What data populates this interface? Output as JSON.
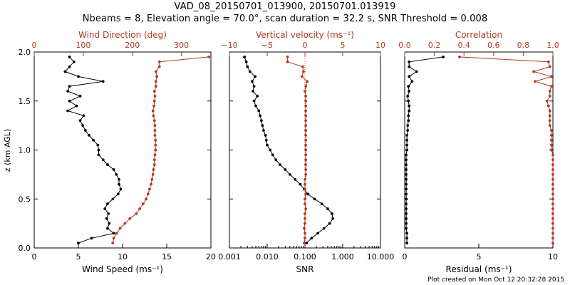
{
  "header": {
    "title_line1": "VAD_08_20150701_013900, 20150701.013919",
    "title_line2": "Nbeams = 8, Elevation angle = 70.0°, scan duration = 32.2 s, SNR Threshold = 0.008"
  },
  "footer": {
    "text": "Plot created on Mon Oct 12 20:32:28 2015"
  },
  "colors": {
    "primary": "#000000",
    "secondary": "#b03a1e",
    "zero_line": "#ff3030"
  },
  "chart_data": [
    {
      "type": "line",
      "ylabel": "z (km AGL)",
      "ylim": [
        0,
        2.0
      ],
      "yticks": [
        0.0,
        0.5,
        1.0,
        1.5,
        2.0
      ],
      "ytick_labels": [
        "0.0",
        "0.5",
        "1.0",
        "1.5",
        "2.0"
      ],
      "xlabel": "Wind Speed (ms⁻¹)",
      "xlim": [
        0,
        20
      ],
      "xticks": [
        0,
        5,
        10,
        15,
        20
      ],
      "xtick_labels": [
        "0",
        "5",
        "10",
        "15",
        "20"
      ],
      "x2label": "Wind Direction (deg)",
      "x2lim": [
        0,
        360
      ],
      "x2ticks": [
        0,
        100,
        200,
        300
      ],
      "x2tick_labels": [
        "0",
        "100",
        "200",
        "300"
      ],
      "series": [
        {
          "axis": "bottom",
          "z": [
            0.05,
            0.1,
            0.15,
            0.2,
            0.25,
            0.3,
            0.35,
            0.4,
            0.45,
            0.5,
            0.55,
            0.6,
            0.65,
            0.7,
            0.75,
            0.8,
            0.85,
            0.9,
            0.95,
            1.0,
            1.05,
            1.1,
            1.15,
            1.2,
            1.25,
            1.3,
            1.35,
            1.4,
            1.45,
            1.5,
            1.55,
            1.6,
            1.65,
            1.7,
            1.75,
            1.8,
            1.85,
            1.9,
            1.95
          ],
          "values": [
            5.0,
            6.5,
            9.0,
            8.3,
            8.5,
            8.2,
            8.4,
            8.0,
            8.3,
            8.9,
            9.5,
            9.8,
            9.6,
            9.6,
            9.3,
            9.0,
            8.3,
            7.8,
            7.3,
            7.3,
            7.2,
            6.7,
            6.2,
            5.8,
            5.5,
            5.2,
            5.6,
            3.8,
            4.8,
            4.0,
            5.2,
            3.8,
            4.0,
            7.8,
            5.0,
            3.5,
            4.0,
            4.5,
            4.0
          ]
        },
        {
          "axis": "top",
          "z": [
            0.05,
            0.1,
            0.15,
            0.2,
            0.25,
            0.3,
            0.35,
            0.4,
            0.45,
            0.5,
            0.55,
            0.6,
            0.65,
            0.7,
            0.75,
            0.8,
            0.85,
            0.9,
            0.95,
            1.0,
            1.05,
            1.1,
            1.15,
            1.2,
            1.25,
            1.3,
            1.35,
            1.4,
            1.45,
            1.5,
            1.55,
            1.6,
            1.65,
            1.7,
            1.75,
            1.8,
            1.85,
            1.9,
            1.95
          ],
          "values": [
            160,
            162,
            168,
            175,
            185,
            195,
            208,
            215,
            222,
            228,
            232,
            235,
            238,
            240,
            242,
            243,
            245,
            245,
            246,
            247,
            247,
            247,
            246,
            246,
            246,
            245,
            243,
            242,
            244,
            245,
            246,
            245,
            248,
            248,
            250,
            248,
            255,
            255,
            356
          ]
        }
      ]
    },
    {
      "type": "line",
      "xlabel": "SNR",
      "xscale": "log",
      "xlim": [
        0.001,
        10
      ],
      "xticks": [
        0.001,
        0.01,
        0.1,
        1,
        10
      ],
      "xtick_labels": [
        "0.001",
        "0.010",
        "0.100",
        "1.000",
        "10.000"
      ],
      "x2label": "Vertical velocity (ms⁻¹)",
      "x2lim": [
        -10,
        10
      ],
      "x2ticks": [
        -10,
        -5,
        0,
        5,
        10
      ],
      "x2tick_labels": [
        "−10",
        "−5",
        "0",
        "5",
        "10"
      ],
      "zero_line_x2": 0,
      "series": [
        {
          "axis": "bottom",
          "z": [
            0.05,
            0.1,
            0.15,
            0.2,
            0.25,
            0.3,
            0.35,
            0.4,
            0.45,
            0.5,
            0.55,
            0.6,
            0.65,
            0.7,
            0.75,
            0.8,
            0.85,
            0.9,
            0.95,
            1.0,
            1.05,
            1.1,
            1.15,
            1.2,
            1.25,
            1.3,
            1.35,
            1.4,
            1.45,
            1.5,
            1.55,
            1.6,
            1.65,
            1.7,
            1.75,
            1.8,
            1.85,
            1.9,
            1.95
          ],
          "values": [
            0.11,
            0.15,
            0.22,
            0.32,
            0.45,
            0.55,
            0.52,
            0.4,
            0.28,
            0.18,
            0.12,
            0.095,
            0.075,
            0.055,
            0.04,
            0.03,
            0.022,
            0.017,
            0.014,
            0.012,
            0.01,
            0.0095,
            0.009,
            0.008,
            0.0075,
            0.007,
            0.0065,
            0.006,
            0.005,
            0.0045,
            0.0055,
            0.0042,
            0.0045,
            0.004,
            0.0048,
            0.0035,
            0.003,
            0.0028,
            0.0025
          ]
        },
        {
          "axis": "top",
          "z": [
            0.05,
            0.1,
            0.15,
            0.2,
            0.25,
            0.3,
            0.35,
            0.4,
            0.45,
            0.5,
            0.55,
            0.6,
            0.65,
            0.7,
            0.75,
            0.8,
            0.85,
            0.9,
            0.95,
            1.0,
            1.05,
            1.1,
            1.15,
            1.2,
            1.25,
            1.3,
            1.35,
            1.4,
            1.45,
            1.5,
            1.55,
            1.6,
            1.65,
            1.7,
            1.75,
            1.8,
            1.85,
            1.9,
            1.95
          ],
          "values": [
            -0.1,
            0.0,
            0.0,
            -0.1,
            0.0,
            0.0,
            0.0,
            0.1,
            0.0,
            0.0,
            0.1,
            0.0,
            0.0,
            0.0,
            0.1,
            0.1,
            0.1,
            0.1,
            0.1,
            0.1,
            0.1,
            0.1,
            0.1,
            0.1,
            0.1,
            0.1,
            0.1,
            0.1,
            0.1,
            0.1,
            0.1,
            0.0,
            0.1,
            0.3,
            -0.4,
            -0.2,
            -0.3,
            -2.3,
            -2.3
          ]
        }
      ]
    },
    {
      "type": "line",
      "xlabel": "Residual (ms⁻¹)",
      "xlim": [
        0,
        10
      ],
      "xticks": [
        0,
        5,
        10
      ],
      "xtick_labels": [
        "0",
        "5",
        "10"
      ],
      "x2label": "Correlation",
      "x2lim": [
        0,
        1
      ],
      "x2ticks": [
        0,
        0.2,
        0.4,
        0.6,
        0.8,
        1.0
      ],
      "x2tick_labels": [
        "0.0",
        "0.2",
        "0.4",
        "0.6",
        "0.8",
        "1.0"
      ],
      "series": [
        {
          "axis": "bottom",
          "z": [
            0.05,
            0.1,
            0.15,
            0.2,
            0.25,
            0.3,
            0.35,
            0.4,
            0.45,
            0.5,
            0.55,
            0.6,
            0.65,
            0.7,
            0.75,
            0.8,
            0.85,
            0.9,
            0.95,
            1.0,
            1.05,
            1.1,
            1.15,
            1.2,
            1.25,
            1.3,
            1.35,
            1.4,
            1.45,
            1.5,
            1.55,
            1.6,
            1.65,
            1.7,
            1.75,
            1.8,
            1.85,
            1.9,
            1.95
          ],
          "values": [
            0.15,
            0.15,
            0.15,
            0.1,
            0.1,
            0.1,
            0.1,
            0.1,
            0.1,
            0.1,
            0.1,
            0.1,
            0.1,
            0.1,
            0.1,
            0.1,
            0.1,
            0.1,
            0.1,
            0.15,
            0.15,
            0.15,
            0.15,
            0.2,
            0.2,
            0.25,
            0.25,
            0.3,
            0.3,
            0.25,
            0.2,
            0.3,
            0.25,
            0.5,
            0.3,
            0.8,
            0.3,
            0.3,
            2.6
          ]
        },
        {
          "axis": "top",
          "z": [
            0.05,
            0.1,
            0.15,
            0.2,
            0.25,
            0.3,
            0.35,
            0.4,
            0.45,
            0.5,
            0.55,
            0.6,
            0.65,
            0.7,
            0.75,
            0.8,
            0.85,
            0.9,
            0.95,
            1.0,
            1.05,
            1.1,
            1.15,
            1.2,
            1.25,
            1.3,
            1.35,
            1.4,
            1.45,
            1.5,
            1.55,
            1.6,
            1.65,
            1.7,
            1.75,
            1.8,
            1.85,
            1.9,
            1.95
          ],
          "values": [
            1.0,
            1.0,
            1.0,
            1.0,
            1.0,
            1.0,
            1.0,
            1.0,
            1.0,
            1.0,
            1.0,
            1.0,
            1.0,
            1.0,
            1.0,
            1.0,
            1.0,
            1.0,
            1.0,
            0.99,
            0.99,
            0.99,
            0.99,
            0.99,
            0.98,
            0.98,
            0.98,
            0.98,
            0.97,
            0.96,
            0.98,
            0.98,
            0.99,
            0.88,
            0.99,
            0.87,
            0.98,
            0.97,
            0.37
          ]
        }
      ]
    }
  ]
}
